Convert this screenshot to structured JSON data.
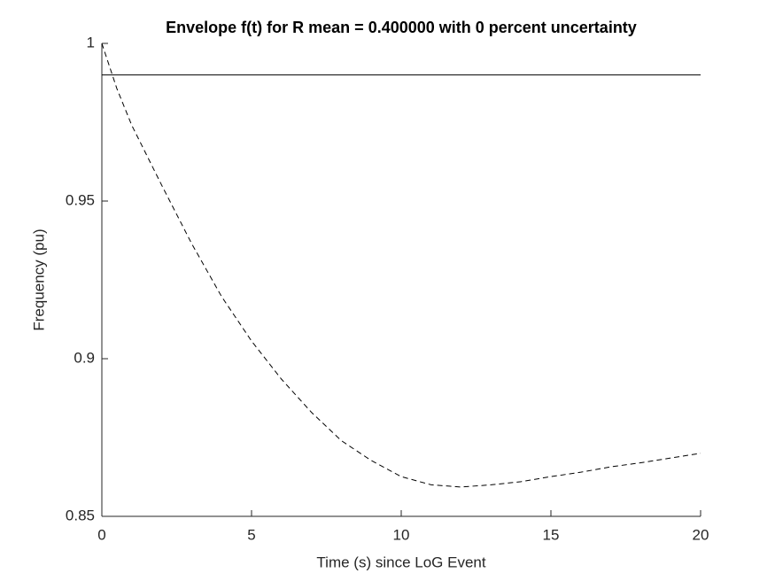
{
  "chart_data": {
    "type": "line",
    "title": "Envelope f(t) for R mean = 0.400000 with 0 percent uncertainty",
    "xlabel": "Time (s) since LoG Event",
    "ylabel": "Frequency (pu)",
    "xlim": [
      0,
      20
    ],
    "xticks": [
      0,
      5,
      10,
      15,
      20
    ],
    "ylim": [
      0.85,
      1
    ],
    "yticks": [
      0.85,
      0.9,
      0.95,
      1
    ],
    "series": [
      {
        "color": "#000000",
        "dashed": false,
        "x": [
          0,
          20
        ],
        "values": [
          0.99,
          0.99
        ]
      },
      {
        "color": "#000000",
        "dashed": true,
        "x": [
          0,
          0.5,
          1,
          2,
          3,
          4,
          5,
          6,
          7,
          8,
          9,
          10,
          11,
          12,
          13,
          14,
          15,
          16,
          17,
          18,
          19,
          20
        ],
        "values": [
          1.0,
          0.9857,
          0.974,
          0.955,
          0.9365,
          0.9197,
          0.9056,
          0.8935,
          0.883,
          0.874,
          0.8677,
          0.8626,
          0.86,
          0.8593,
          0.86,
          0.861,
          0.8626,
          0.864,
          0.8657,
          0.867,
          0.8685,
          0.87
        ]
      }
    ]
  }
}
